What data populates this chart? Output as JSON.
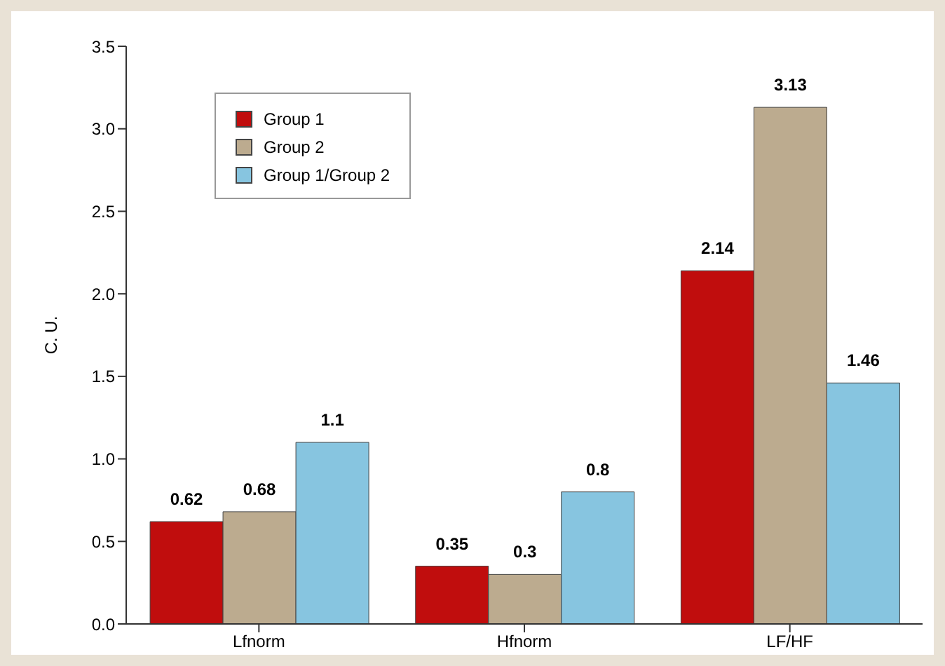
{
  "chart_data": {
    "type": "bar",
    "ylabel": "C. U.",
    "categories": [
      "Lfnorm",
      "Hfnorm",
      "LF/HF"
    ],
    "series": [
      {
        "name": "Group 1",
        "color": "#c00d0d",
        "values": [
          0.62,
          0.35,
          2.14
        ]
      },
      {
        "name": "Group 2",
        "color": "#bcab8f",
        "values": [
          0.68,
          0.3,
          3.13
        ]
      },
      {
        "name": "Group 1/Group 2",
        "color": "#87c5e0",
        "values": [
          1.1,
          0.8,
          1.46
        ]
      }
    ],
    "ylim": [
      0,
      3.5
    ],
    "yticks": [
      {
        "value": 0,
        "label": "0.0"
      },
      0.5,
      {
        "value": 1,
        "label": "1.0"
      },
      1.5,
      {
        "value": 2,
        "label": "2.0"
      },
      2.5,
      {
        "value": 3,
        "label": "3.0"
      },
      3.5
    ],
    "data_labels": true,
    "legend": "top left",
    "grid": false
  }
}
